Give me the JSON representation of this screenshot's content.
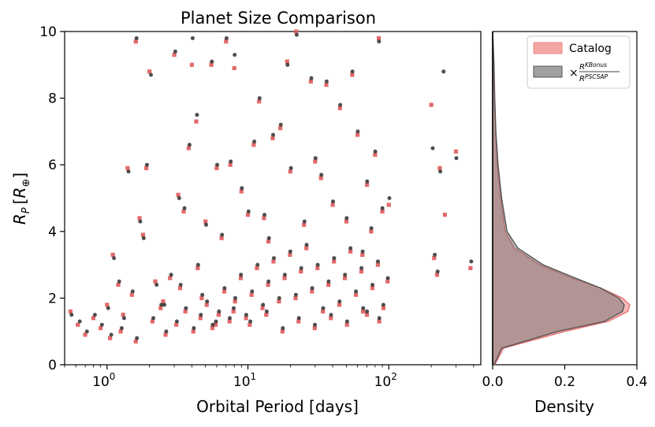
{
  "chart_data": {
    "type": "scatter",
    "title": "Planet Size Comparison",
    "xlabel": "Orbital Period [days]",
    "ylabel": {
      "base": "R",
      "sub": "P",
      "bracket_open": "[",
      "symbol": "R",
      "sub_symbol": "⊕",
      "bracket_close": "]"
    },
    "x_scale": "log",
    "xlim": [
      0.5,
      450
    ],
    "ylim": [
      0,
      10
    ],
    "x_ticks": [
      {
        "value": 1,
        "base": "10",
        "exp": "0"
      },
      {
        "value": 10,
        "base": "10",
        "exp": "1"
      },
      {
        "value": 100,
        "base": "10",
        "exp": "2"
      }
    ],
    "y_ticks": [
      "0",
      "2",
      "4",
      "6",
      "8",
      "10"
    ],
    "grid": false,
    "series": [
      {
        "name": "Catalog",
        "color": "#e05a5a",
        "marker": "square"
      },
      {
        "name": "",
        "color": "#222222",
        "marker": "circle"
      }
    ],
    "points_catalog": [
      [
        0.55,
        1.6
      ],
      [
        0.62,
        1.2
      ],
      [
        0.7,
        0.9
      ],
      [
        0.8,
        1.4
      ],
      [
        0.9,
        1.1
      ],
      [
        1.0,
        1.8
      ],
      [
        1.1,
        3.3
      ],
      [
        1.2,
        2.4
      ],
      [
        1.3,
        1.5
      ],
      [
        1.4,
        5.9
      ],
      [
        1.5,
        2.1
      ],
      [
        1.6,
        9.7
      ],
      [
        1.7,
        4.4
      ],
      [
        1.8,
        3.9
      ],
      [
        1.9,
        5.9
      ],
      [
        2.0,
        8.8
      ],
      [
        2.2,
        2.5
      ],
      [
        2.5,
        1.9
      ],
      [
        2.8,
        2.6
      ],
      [
        3.0,
        9.3
      ],
      [
        3.2,
        5.1
      ],
      [
        3.5,
        4.6
      ],
      [
        3.8,
        6.5
      ],
      [
        4.0,
        9.0
      ],
      [
        4.3,
        7.3
      ],
      [
        4.7,
        2.0
      ],
      [
        5.0,
        4.3
      ],
      [
        5.5,
        9.0
      ],
      [
        6.0,
        5.9
      ],
      [
        6.5,
        3.8
      ],
      [
        7.0,
        9.7
      ],
      [
        7.5,
        6.0
      ],
      [
        8.0,
        8.9
      ],
      [
        9.0,
        5.2
      ],
      [
        10.0,
        4.5
      ],
      [
        11.0,
        6.6
      ],
      [
        12.0,
        7.9
      ],
      [
        13.0,
        4.4
      ],
      [
        14.0,
        3.7
      ],
      [
        15.0,
        6.8
      ],
      [
        17.0,
        7.1
      ],
      [
        19.0,
        9.1
      ],
      [
        20.0,
        5.8
      ],
      [
        22.0,
        10.0
      ],
      [
        25.0,
        4.2
      ],
      [
        28.0,
        8.5
      ],
      [
        30.0,
        6.1
      ],
      [
        33.0,
        5.6
      ],
      [
        36.0,
        8.4
      ],
      [
        40.0,
        4.8
      ],
      [
        45.0,
        7.7
      ],
      [
        50.0,
        4.3
      ],
      [
        55.0,
        8.7
      ],
      [
        60.0,
        6.9
      ],
      [
        65.0,
        3.3
      ],
      [
        70.0,
        5.4
      ],
      [
        75.0,
        4.0
      ],
      [
        80.0,
        6.3
      ],
      [
        85.0,
        9.8
      ],
      [
        90.0,
        4.6
      ],
      [
        100.0,
        4.8
      ],
      [
        200.0,
        7.8
      ],
      [
        210.0,
        3.2
      ],
      [
        220.0,
        2.7
      ],
      [
        230.0,
        5.9
      ],
      [
        250.0,
        4.5
      ],
      [
        300.0,
        6.4
      ],
      [
        380.0,
        2.9
      ],
      [
        1.05,
        0.8
      ],
      [
        1.25,
        1.0
      ],
      [
        1.6,
        0.7
      ],
      [
        2.1,
        1.3
      ],
      [
        2.6,
        0.9
      ],
      [
        3.1,
        1.2
      ],
      [
        3.6,
        1.6
      ],
      [
        4.1,
        1.0
      ],
      [
        4.6,
        1.4
      ],
      [
        5.1,
        1.8
      ],
      [
        5.6,
        1.1
      ],
      [
        6.2,
        1.5
      ],
      [
        6.8,
        2.2
      ],
      [
        7.4,
        1.3
      ],
      [
        8.1,
        1.9
      ],
      [
        8.9,
        2.6
      ],
      [
        9.7,
        1.4
      ],
      [
        10.6,
        2.1
      ],
      [
        11.6,
        2.9
      ],
      [
        12.7,
        1.7
      ],
      [
        13.9,
        2.4
      ],
      [
        15.2,
        3.1
      ],
      [
        16.6,
        1.9
      ],
      [
        18.2,
        2.6
      ],
      [
        19.9,
        3.3
      ],
      [
        21.8,
        2.0
      ],
      [
        23.8,
        2.8
      ],
      [
        26.0,
        3.5
      ],
      [
        28.5,
        2.2
      ],
      [
        31.2,
        2.9
      ],
      [
        34.1,
        1.6
      ],
      [
        37.3,
        2.4
      ],
      [
        40.8,
        3.1
      ],
      [
        44.6,
        1.8
      ],
      [
        48.8,
        2.6
      ],
      [
        53.4,
        3.4
      ],
      [
        58.4,
        2.1
      ],
      [
        63.9,
        2.8
      ],
      [
        69.9,
        1.5
      ],
      [
        76.5,
        2.3
      ],
      [
        83.7,
        3.0
      ],
      [
        91.5,
        1.7
      ],
      [
        98.0,
        2.5
      ],
      [
        2.4,
        1.7
      ],
      [
        3.3,
        2.3
      ],
      [
        4.4,
        2.9
      ],
      [
        5.9,
        1.2
      ],
      [
        7.9,
        1.6
      ],
      [
        10.3,
        1.2
      ],
      [
        13.5,
        1.5
      ],
      [
        17.6,
        1.0
      ],
      [
        22.9,
        1.3
      ],
      [
        29.8,
        1.1
      ],
      [
        38.8,
        1.4
      ],
      [
        50.5,
        1.2
      ],
      [
        65.7,
        1.6
      ],
      [
        85.5,
        1.3
      ]
    ],
    "points_corrected": [
      [
        0.56,
        1.5
      ],
      [
        0.64,
        1.3
      ],
      [
        0.72,
        1.0
      ],
      [
        0.82,
        1.5
      ],
      [
        0.92,
        1.2
      ],
      [
        1.02,
        1.7
      ],
      [
        1.12,
        3.2
      ],
      [
        1.22,
        2.5
      ],
      [
        1.32,
        1.4
      ],
      [
        1.42,
        5.8
      ],
      [
        1.52,
        2.2
      ],
      [
        1.62,
        9.8
      ],
      [
        1.72,
        4.3
      ],
      [
        1.82,
        3.8
      ],
      [
        1.92,
        6.0
      ],
      [
        2.05,
        8.7
      ],
      [
        2.25,
        2.4
      ],
      [
        2.55,
        1.8
      ],
      [
        2.85,
        2.7
      ],
      [
        3.05,
        9.4
      ],
      [
        3.25,
        5.0
      ],
      [
        3.55,
        4.7
      ],
      [
        3.85,
        6.6
      ],
      [
        4.05,
        9.8
      ],
      [
        4.35,
        7.5
      ],
      [
        4.75,
        2.1
      ],
      [
        5.05,
        4.2
      ],
      [
        5.55,
        9.1
      ],
      [
        6.05,
        6.0
      ],
      [
        6.55,
        3.9
      ],
      [
        7.05,
        9.8
      ],
      [
        7.55,
        6.1
      ],
      [
        8.05,
        9.3
      ],
      [
        9.05,
        5.3
      ],
      [
        10.1,
        4.6
      ],
      [
        11.1,
        6.7
      ],
      [
        12.1,
        8.0
      ],
      [
        13.1,
        4.5
      ],
      [
        14.1,
        3.8
      ],
      [
        15.1,
        6.9
      ],
      [
        17.1,
        7.2
      ],
      [
        19.1,
        9.0
      ],
      [
        20.2,
        5.9
      ],
      [
        22.2,
        9.9
      ],
      [
        25.2,
        4.3
      ],
      [
        28.2,
        8.6
      ],
      [
        30.2,
        6.2
      ],
      [
        33.2,
        5.7
      ],
      [
        36.2,
        8.5
      ],
      [
        40.2,
        4.9
      ],
      [
        45.2,
        7.8
      ],
      [
        50.2,
        4.4
      ],
      [
        55.2,
        8.8
      ],
      [
        60.2,
        7.0
      ],
      [
        65.2,
        3.4
      ],
      [
        70.2,
        5.5
      ],
      [
        75.2,
        4.1
      ],
      [
        80.2,
        6.4
      ],
      [
        85.2,
        9.7
      ],
      [
        90.2,
        4.7
      ],
      [
        101.0,
        5.0
      ],
      [
        205.0,
        6.5
      ],
      [
        212.0,
        3.3
      ],
      [
        222.0,
        2.8
      ],
      [
        232.0,
        5.8
      ],
      [
        245.0,
        8.8
      ],
      [
        302.0,
        6.2
      ],
      [
        385.0,
        3.1
      ],
      [
        1.07,
        0.9
      ],
      [
        1.27,
        1.1
      ],
      [
        1.63,
        0.8
      ],
      [
        2.13,
        1.4
      ],
      [
        2.63,
        1.0
      ],
      [
        3.13,
        1.3
      ],
      [
        3.63,
        1.7
      ],
      [
        4.13,
        1.1
      ],
      [
        4.63,
        1.5
      ],
      [
        5.13,
        1.9
      ],
      [
        5.63,
        1.2
      ],
      [
        6.23,
        1.6
      ],
      [
        6.83,
        2.3
      ],
      [
        7.43,
        1.4
      ],
      [
        8.13,
        2.0
      ],
      [
        8.93,
        2.7
      ],
      [
        9.73,
        1.5
      ],
      [
        10.7,
        2.2
      ],
      [
        11.7,
        3.0
      ],
      [
        12.8,
        1.8
      ],
      [
        14.0,
        2.5
      ],
      [
        15.3,
        3.2
      ],
      [
        16.7,
        2.0
      ],
      [
        18.3,
        2.7
      ],
      [
        20.0,
        3.4
      ],
      [
        21.9,
        2.1
      ],
      [
        23.9,
        2.9
      ],
      [
        26.1,
        3.6
      ],
      [
        28.6,
        2.3
      ],
      [
        31.3,
        3.0
      ],
      [
        34.2,
        1.7
      ],
      [
        37.4,
        2.5
      ],
      [
        40.9,
        3.2
      ],
      [
        44.7,
        1.9
      ],
      [
        48.9,
        2.7
      ],
      [
        53.5,
        3.5
      ],
      [
        58.5,
        2.2
      ],
      [
        64.0,
        2.9
      ],
      [
        70.0,
        1.6
      ],
      [
        76.6,
        2.4
      ],
      [
        83.8,
        3.1
      ],
      [
        91.6,
        1.8
      ],
      [
        98.5,
        2.6
      ],
      [
        2.43,
        1.8
      ],
      [
        3.33,
        2.4
      ],
      [
        4.43,
        3.0
      ],
      [
        5.93,
        1.3
      ],
      [
        7.93,
        1.7
      ],
      [
        10.4,
        1.3
      ],
      [
        13.6,
        1.6
      ],
      [
        17.7,
        1.1
      ],
      [
        23.0,
        1.4
      ],
      [
        29.9,
        1.2
      ],
      [
        38.9,
        1.5
      ],
      [
        50.6,
        1.3
      ],
      [
        65.8,
        1.7
      ],
      [
        85.6,
        1.4
      ]
    ],
    "density": {
      "xlabel": "Density",
      "xlim": [
        0,
        0.4
      ],
      "x_ticks": [
        "0.0",
        "0.2",
        "0.4"
      ],
      "legend": [
        {
          "label": "Catalog",
          "color": "#f08080"
        },
        {
          "label": "×",
          "frac_num_base": "R",
          "frac_num_sup": "KBonus",
          "frac_den_base": "R",
          "frac_den_sup": "PSCSAP",
          "color": "#808080"
        }
      ],
      "catalog_curve": [
        [
          0,
          0.006
        ],
        [
          0.5,
          0.03
        ],
        [
          1.0,
          0.2
        ],
        [
          1.3,
          0.32
        ],
        [
          1.6,
          0.375
        ],
        [
          1.8,
          0.38
        ],
        [
          2.0,
          0.36
        ],
        [
          2.3,
          0.3
        ],
        [
          2.6,
          0.22
        ],
        [
          3.0,
          0.13
        ],
        [
          3.5,
          0.06
        ],
        [
          4.0,
          0.035
        ],
        [
          5.0,
          0.022
        ],
        [
          6.0,
          0.013
        ],
        [
          7.0,
          0.008
        ],
        [
          8.0,
          0.005
        ],
        [
          9.0,
          0.003
        ],
        [
          10.0,
          0.0
        ]
      ],
      "corrected_curve": [
        [
          0,
          0.004
        ],
        [
          0.5,
          0.025
        ],
        [
          1.0,
          0.18
        ],
        [
          1.3,
          0.31
        ],
        [
          1.6,
          0.36
        ],
        [
          1.8,
          0.365
        ],
        [
          2.0,
          0.35
        ],
        [
          2.3,
          0.3
        ],
        [
          2.6,
          0.23
        ],
        [
          3.0,
          0.14
        ],
        [
          3.5,
          0.07
        ],
        [
          4.0,
          0.04
        ],
        [
          5.0,
          0.025
        ],
        [
          6.0,
          0.015
        ],
        [
          7.0,
          0.009
        ],
        [
          8.0,
          0.006
        ],
        [
          9.0,
          0.004
        ],
        [
          10.0,
          0.0
        ]
      ]
    }
  }
}
